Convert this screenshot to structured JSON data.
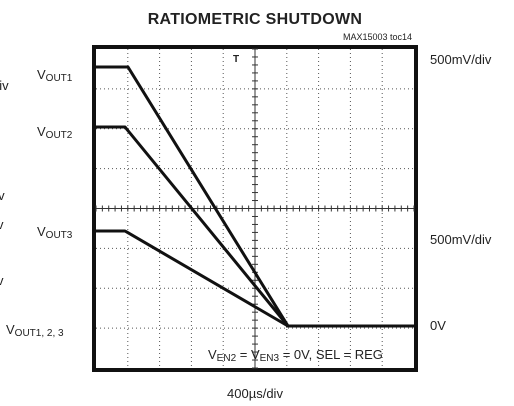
{
  "title": "RATIOMETRIC SHUTDOWN",
  "figure_id": "MAX15003 toc14",
  "left_labels": [
    {
      "main": "V",
      "sub": "OUT1"
    },
    {
      "main": "V",
      "sub": "OUT2"
    },
    {
      "main": "V",
      "sub": "OUT3"
    },
    {
      "main": "V",
      "sub": "OUT1, 2, 3"
    }
  ],
  "right_labels": [
    "500mV/div",
    "500mV/div",
    "0V"
  ],
  "time_scale": "400µs/div",
  "annotation": [
    {
      "main": "V",
      "sub": "EN2"
    },
    {
      "main": " = V"
    },
    {
      "main": "",
      "sub": "EN3"
    },
    {
      "main": " = 0V, SEL = REG"
    }
  ],
  "cut_off_labels": [
    "div",
    "div",
    "v",
    "v"
  ]
}
